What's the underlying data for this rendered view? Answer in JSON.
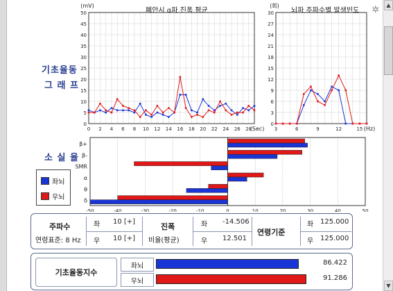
{
  "labels": {
    "graph_section": "기초율동 그래프",
    "graph_section_line1": "기초율동",
    "graph_section_line2": "그 래 프",
    "loss_section": "소 실 율",
    "legend_left": "좌뇌",
    "legend_right": "우뇌"
  },
  "colors": {
    "left_brain": "#1a35d6",
    "right_brain": "#e01818",
    "grid": "#a0a0a0"
  },
  "chart_data": [
    {
      "type": "line",
      "title": "폐안시 α파 진폭 평균",
      "ylabel": "(mV)",
      "xlabel": "(Sec)",
      "ylim": [
        0,
        50
      ],
      "xlim": [
        0,
        29
      ],
      "yticks": [
        0,
        5,
        10,
        15,
        20,
        25,
        30,
        35,
        40,
        45,
        50
      ],
      "xticks": [
        0,
        2,
        4,
        6,
        8,
        10,
        12,
        14,
        16,
        18,
        20,
        22,
        24,
        26,
        28
      ],
      "x": [
        0,
        1,
        2,
        3,
        4,
        5,
        6,
        7,
        8,
        9,
        10,
        11,
        12,
        13,
        14,
        15,
        16,
        17,
        18,
        19,
        20,
        21,
        22,
        23,
        24,
        25,
        26,
        27,
        28,
        29
      ],
      "series": [
        {
          "name": "좌뇌",
          "values": [
            6,
            5,
            6,
            5,
            7,
            6,
            6,
            6,
            5,
            9,
            4,
            3,
            5,
            4,
            3,
            5,
            13,
            13,
            6,
            5,
            11,
            8,
            6,
            8,
            9,
            6,
            4,
            7,
            6,
            8
          ]
        },
        {
          "name": "우뇌",
          "values": [
            5,
            5,
            9,
            6,
            5,
            11,
            8,
            7,
            6,
            3,
            6,
            4,
            8,
            5,
            7,
            5,
            21,
            7,
            3,
            4,
            3,
            6,
            5,
            10,
            6,
            4,
            5,
            5,
            8,
            6
          ]
        }
      ],
      "grid": true
    },
    {
      "type": "line",
      "title": "뇌파 주파수별 발생빈도",
      "ylabel": "(회)",
      "xlabel": "(Hz)",
      "ylim": [
        0,
        30
      ],
      "xlim": [
        3,
        16
      ],
      "yticks": [
        0,
        3,
        6,
        9,
        12,
        15,
        18,
        21,
        24,
        27,
        30
      ],
      "xticks": [
        3,
        6,
        9,
        12,
        15
      ],
      "x": [
        3,
        4,
        5,
        6,
        7,
        8,
        9,
        10,
        11,
        12,
        13,
        14,
        15,
        16
      ],
      "series": [
        {
          "name": "좌뇌",
          "values": [
            0,
            0,
            0,
            0,
            5,
            9,
            8,
            6,
            10,
            9,
            0,
            0,
            0,
            0
          ]
        },
        {
          "name": "우뇌",
          "values": [
            0,
            0,
            0,
            0,
            8,
            10,
            6,
            5,
            9,
            13,
            9,
            0,
            0,
            0
          ]
        }
      ],
      "grid": true
    },
    {
      "type": "bar",
      "orientation": "horizontal",
      "title": "",
      "categories": [
        "β+",
        "β-",
        "SMR",
        "α",
        "θ",
        "δ"
      ],
      "xlim": [
        -50,
        50
      ],
      "xticks": [
        -50,
        -40,
        -30,
        -20,
        -10,
        0,
        10,
        20,
        30,
        40,
        50
      ],
      "series": [
        {
          "name": "우뇌",
          "values": [
            28,
            27,
            -34,
            13,
            -7,
            -40
          ]
        },
        {
          "name": "좌뇌",
          "values": [
            29,
            18,
            -6,
            7,
            -15,
            -50
          ]
        }
      ],
      "grid": true
    },
    {
      "type": "bar",
      "orientation": "horizontal",
      "title": "기초율동지수",
      "categories": [
        "좌뇌",
        "우뇌"
      ],
      "values": [
        86.422,
        91.286
      ],
      "value_labels": [
        "86.422",
        "91.286"
      ],
      "colors": [
        "#1a35d6",
        "#e01818"
      ]
    }
  ],
  "info": {
    "freq_title": "주파수",
    "freq_sub": "연령표준: 8 Hz",
    "freq_left_label": "좌",
    "freq_left_value": "10 [+]",
    "freq_right_label": "우",
    "freq_right_value": "10 [+]",
    "amp_title": "진폭",
    "amp_sub": "비율(평균)",
    "amp_left_label": "좌",
    "amp_left_value": "-14.506",
    "amp_right_label": "우",
    "amp_right_value": "12.501",
    "age_title": "연령기준",
    "age_left_label": "좌",
    "age_left_value": "125.000",
    "age_right_label": "우",
    "age_right_value": "125.000"
  }
}
